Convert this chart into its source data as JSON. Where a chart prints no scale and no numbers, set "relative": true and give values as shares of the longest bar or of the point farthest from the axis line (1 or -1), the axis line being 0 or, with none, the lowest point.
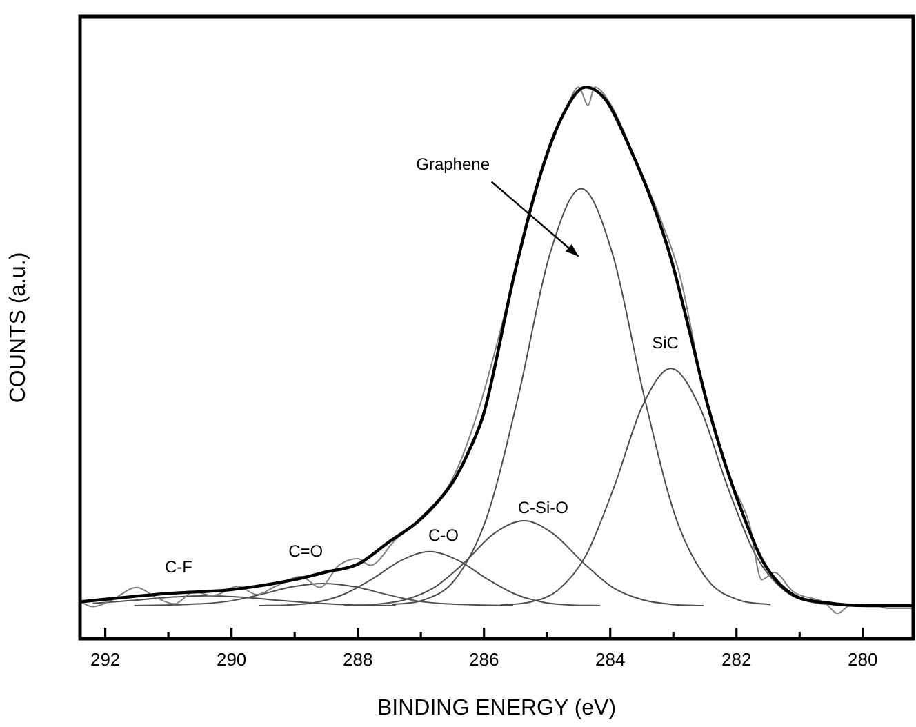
{
  "chart_data": {
    "type": "line",
    "xlabel": "BINDING ENERGY (eV)",
    "ylabel": "COUNTS (a.u.)",
    "relative": true,
    "xlim": [
      292.4,
      279.2
    ],
    "xticks": [
      292,
      {
        "value": 291,
        "label": null
      },
      290,
      {
        "value": 289,
        "label": null
      },
      288,
      {
        "value": 287,
        "label": null
      },
      286,
      {
        "value": 285,
        "label": null
      },
      284,
      {
        "value": 283,
        "label": null
      },
      282,
      {
        "value": 281,
        "label": null
      },
      280
    ],
    "grid": false,
    "legend": false,
    "marker": "none",
    "line_style": "solid",
    "series": [
      {
        "color": "#000000",
        "x": [
          292.4,
          291,
          290,
          289,
          288.5,
          288,
          287.5,
          287,
          286.5,
          286.24,
          286,
          285.52,
          285.15,
          284.79,
          284.39,
          284.06,
          283.69,
          283.33,
          283.04,
          282.75,
          282.46,
          282.16,
          281.87,
          281.58,
          281.15,
          280.56,
          279.9,
          279.2
        ],
        "values": [
          0.067,
          0.082,
          0.089,
          0.107,
          0.121,
          0.135,
          0.176,
          0.217,
          0.283,
          0.34,
          0.41,
          0.66,
          0.825,
          0.94,
          1.0,
          0.975,
          0.89,
          0.79,
          0.69,
          0.56,
          0.425,
          0.31,
          0.217,
          0.14,
          0.083,
          0.065,
          0.06,
          0.06
        ]
      },
      {
        "color": "#808080",
        "x": [
          292.4,
          292.2,
          291.9,
          291.5,
          291.2,
          290.9,
          290.6,
          290.3,
          289.9,
          289.6,
          289.3,
          288.9,
          288.6,
          288.3,
          288,
          287.8,
          287.4,
          287,
          286.5,
          286.1,
          285.6,
          285.1,
          284.7,
          284.5,
          284.35,
          284.25,
          284,
          283.6,
          283.2,
          282.9,
          282.5,
          282.1,
          281.8,
          281.6,
          281.4,
          281.1,
          280.6,
          280.4,
          280.2,
          279.8,
          279.6,
          279.2
        ],
        "values": [
          0.067,
          0.058,
          0.07,
          0.093,
          0.075,
          0.063,
          0.085,
          0.078,
          0.095,
          0.08,
          0.095,
          0.113,
          0.093,
          0.133,
          0.145,
          0.133,
          0.18,
          0.22,
          0.29,
          0.41,
          0.62,
          0.84,
          0.96,
          1.0,
          0.967,
          1.0,
          0.97,
          0.87,
          0.76,
          0.66,
          0.44,
          0.29,
          0.21,
          0.107,
          0.12,
          0.085,
          0.065,
          0.046,
          0.06,
          0.06,
          0.055,
          0.055
        ]
      },
      {
        "name": "Graphene",
        "color": "#4d4d4d",
        "x": [
          287.46,
          286.96,
          286.46,
          285.96,
          285.46,
          284.96,
          284.46,
          283.96,
          283.46,
          282.96,
          282.46,
          281.96,
          281.46
        ],
        "values": [
          0.062,
          0.07,
          0.107,
          0.219,
          0.438,
          0.696,
          0.816,
          0.696,
          0.438,
          0.219,
          0.107,
          0.07,
          0.062
        ]
      },
      {
        "name": "SiC",
        "color": "#4d4d4d",
        "x": [
          285.74,
          285.29,
          284.84,
          284.39,
          283.94,
          283.49,
          283.04,
          282.59,
          282.14,
          281.69,
          281.24,
          280.79,
          280.34
        ],
        "values": [
          0.061,
          0.066,
          0.087,
          0.15,
          0.275,
          0.422,
          0.49,
          0.422,
          0.275,
          0.15,
          0.087,
          0.066,
          0.061
        ]
      },
      {
        "name": "C-Si-O",
        "color": "#4d4d4d",
        "x": [
          288.22,
          287.75,
          287.27,
          286.8,
          286.32,
          285.85,
          285.37,
          284.9,
          284.42,
          283.95,
          283.47,
          283.0,
          282.52
        ],
        "values": [
          0.06,
          0.062,
          0.07,
          0.092,
          0.137,
          0.19,
          0.214,
          0.19,
          0.137,
          0.092,
          0.07,
          0.062,
          0.06
        ]
      },
      {
        "name": "C-O",
        "color": "#4d4d4d",
        "x": [
          289.56,
          289.11,
          288.66,
          288.21,
          287.76,
          287.31,
          286.86,
          286.41,
          285.96,
          285.51,
          285.06,
          284.61,
          284.16
        ],
        "values": [
          0.06,
          0.061,
          0.066,
          0.081,
          0.109,
          0.142,
          0.158,
          0.142,
          0.109,
          0.081,
          0.066,
          0.061,
          0.06
        ]
      },
      {
        "name": "C=O",
        "color": "#4d4d4d",
        "x": [
          291.54,
          291.04,
          290.54,
          290.04,
          289.54,
          289.04,
          288.54,
          288.04,
          287.54,
          287.04,
          286.54,
          286.04,
          285.54
        ],
        "values": [
          0.06,
          0.061,
          0.063,
          0.068,
          0.08,
          0.094,
          0.1,
          0.094,
          0.08,
          0.068,
          0.063,
          0.061,
          0.06
        ]
      },
      {
        "name": "C-F",
        "color": "#4d4d4d",
        "x": [
          292.2,
          291.6,
          291.0,
          290.4,
          289.8,
          289.2,
          288.6,
          288.0,
          287.4
        ],
        "values": [
          0.064,
          0.069,
          0.075,
          0.078,
          0.075,
          0.069,
          0.064,
          0.061,
          0.06
        ]
      }
    ]
  }
}
